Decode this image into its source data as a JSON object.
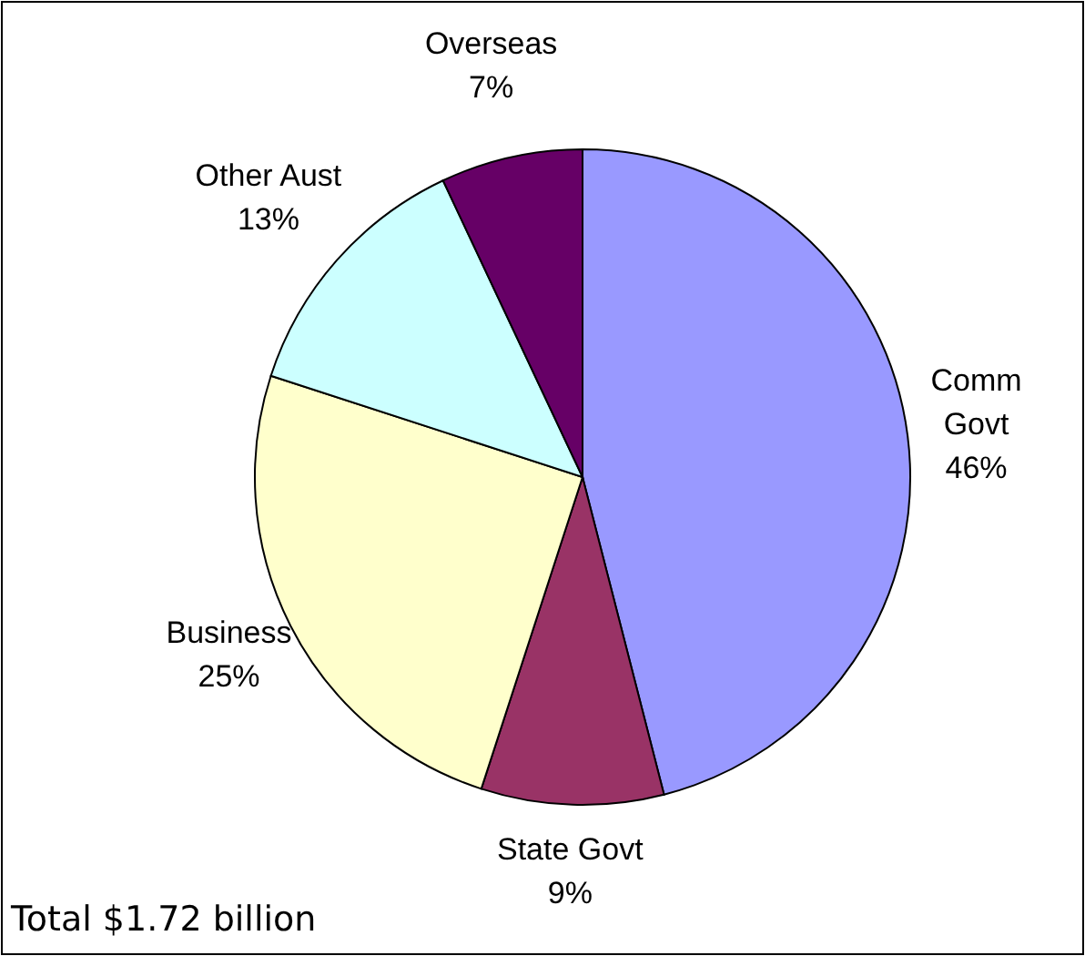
{
  "chart_data": {
    "type": "pie",
    "title": "Total $1.72 billion",
    "categories": [
      "Comm Govt",
      "State Govt",
      "Business",
      "Other Aust",
      "Overseas"
    ],
    "values": [
      46,
      9,
      25,
      13,
      7
    ],
    "colors": [
      "#9999ff",
      "#993366",
      "#ffffcc",
      "#ccffff",
      "#660066"
    ],
    "value_labels": [
      "46%",
      "9%",
      "25%",
      "13%",
      "7%"
    ]
  }
}
